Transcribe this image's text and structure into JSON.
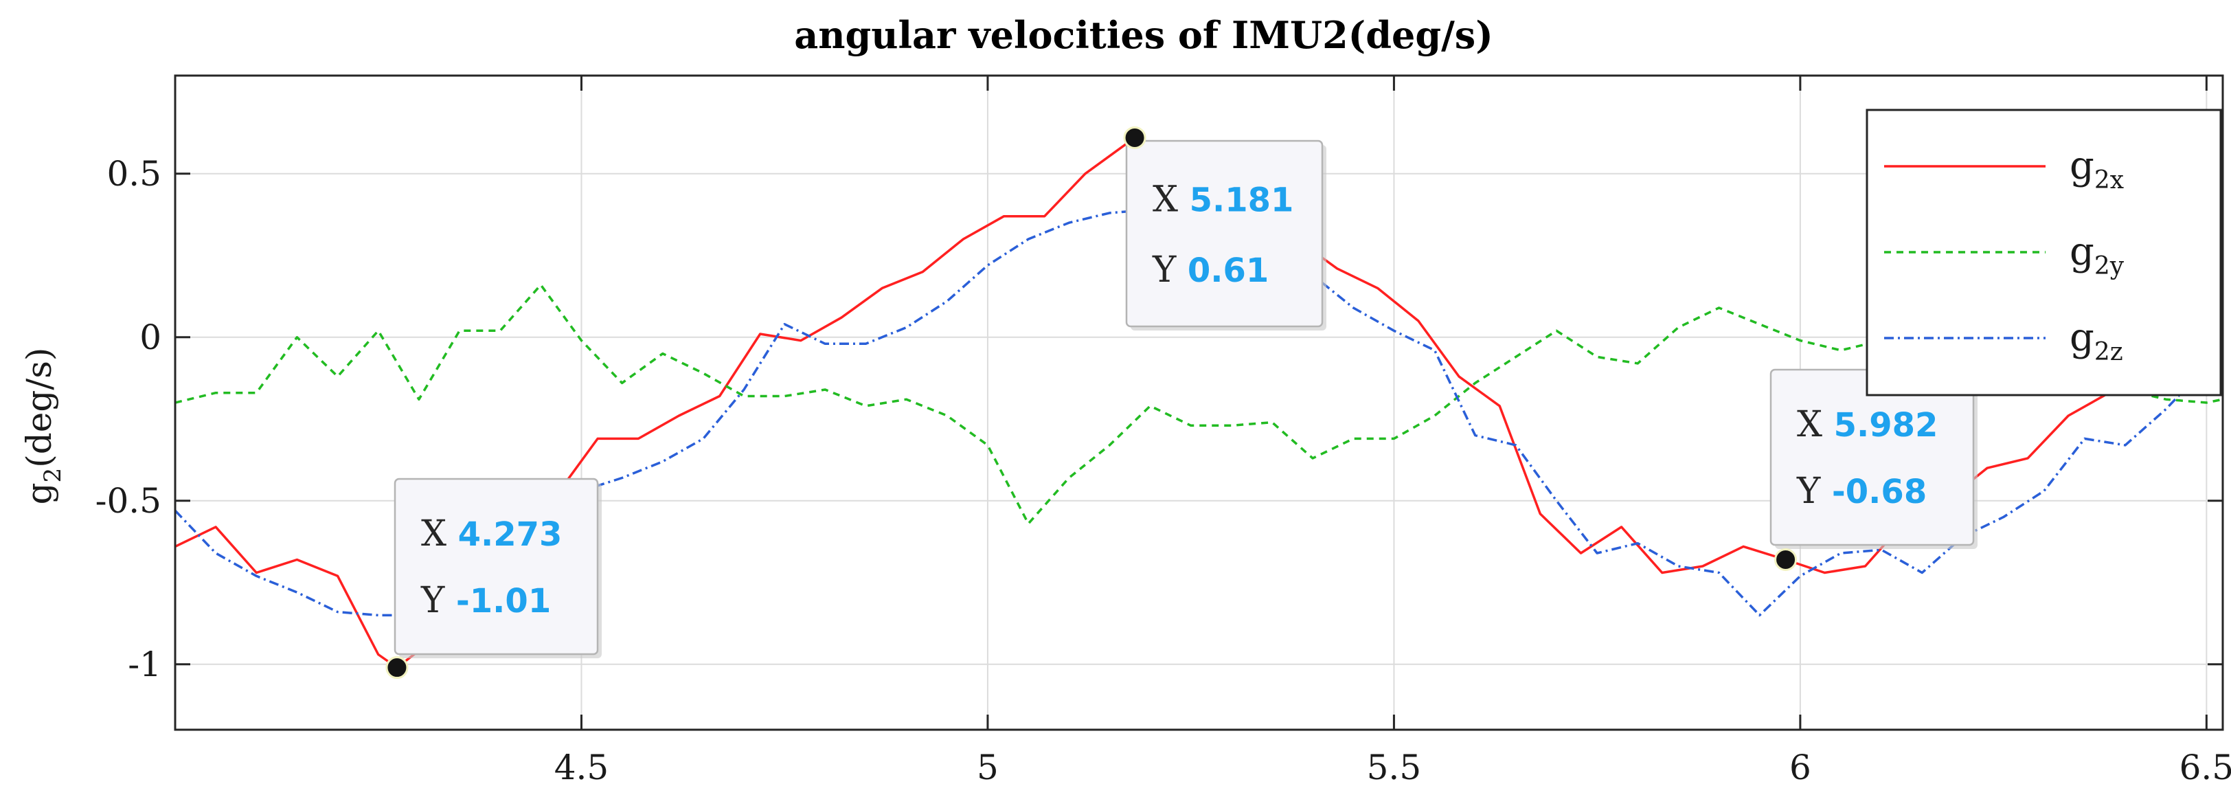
{
  "chart_data": {
    "type": "line",
    "title": "angular velocities of IMU2(deg/s)",
    "ylabel": {
      "main": "g",
      "sub": "2",
      "unit": "(deg/s)"
    },
    "xlabel": "",
    "xlim": [
      4.0,
      6.52
    ],
    "ylim": [
      -1.2,
      0.8
    ],
    "x_ticks": [
      {
        "value": 4.5,
        "label": "4.5"
      },
      {
        "value": 5,
        "label": "5"
      },
      {
        "value": 5.5,
        "label": "5.5"
      },
      {
        "value": 6,
        "label": "6"
      },
      {
        "value": 6.5,
        "label": "6.5"
      }
    ],
    "y_ticks": [
      {
        "value": 0.5,
        "label": "0.5"
      },
      {
        "value": 0,
        "label": "0"
      },
      {
        "value": -0.5,
        "label": "-0.5"
      },
      {
        "value": -1,
        "label": "-1"
      }
    ],
    "grid": true,
    "legend_position": "top-right",
    "series": [
      {
        "name": "g2x",
        "legend_main": "g",
        "legend_sub": "2x",
        "color": "#ff2020",
        "dash": "none",
        "x": [
          4.0,
          4.05,
          4.1,
          4.15,
          4.2,
          4.25,
          4.273,
          4.32,
          4.37,
          4.42,
          4.47,
          4.52,
          4.57,
          4.62,
          4.67,
          4.72,
          4.77,
          4.82,
          4.87,
          4.92,
          4.97,
          5.02,
          5.07,
          5.12,
          5.181,
          5.23,
          5.28,
          5.33,
          5.38,
          5.43,
          5.48,
          5.53,
          5.58,
          5.63,
          5.68,
          5.73,
          5.78,
          5.83,
          5.88,
          5.93,
          5.982,
          6.03,
          6.08,
          6.13,
          6.18,
          6.23,
          6.28,
          6.33,
          6.38,
          6.43,
          6.48,
          6.52
        ],
        "y": [
          -0.64,
          -0.58,
          -0.72,
          -0.68,
          -0.73,
          -0.97,
          -1.01,
          -0.92,
          -0.75,
          -0.62,
          -0.48,
          -0.31,
          -0.31,
          -0.24,
          -0.18,
          0.01,
          -0.01,
          0.06,
          0.15,
          0.2,
          0.3,
          0.37,
          0.37,
          0.5,
          0.61,
          0.52,
          0.44,
          0.39,
          0.3,
          0.21,
          0.15,
          0.05,
          -0.12,
          -0.21,
          -0.54,
          -0.66,
          -0.58,
          -0.72,
          -0.7,
          -0.64,
          -0.68,
          -0.72,
          -0.7,
          -0.56,
          -0.5,
          -0.4,
          -0.37,
          -0.24,
          -0.17,
          -0.12,
          0.0,
          0.11
        ]
      },
      {
        "name": "g2y",
        "legend_main": "g",
        "legend_sub": "2y",
        "color": "#22bb22",
        "dash": "10 8",
        "x": [
          4.0,
          4.05,
          4.1,
          4.15,
          4.2,
          4.25,
          4.3,
          4.35,
          4.4,
          4.45,
          4.5,
          4.55,
          4.6,
          4.65,
          4.7,
          4.75,
          4.8,
          4.85,
          4.9,
          4.95,
          5.0,
          5.05,
          5.1,
          5.15,
          5.2,
          5.25,
          5.3,
          5.35,
          5.4,
          5.45,
          5.5,
          5.55,
          5.6,
          5.65,
          5.7,
          5.75,
          5.8,
          5.85,
          5.9,
          5.95,
          6.0,
          6.05,
          6.1,
          6.15,
          6.2,
          6.25,
          6.3,
          6.35,
          6.4,
          6.45,
          6.5,
          6.52
        ],
        "y": [
          -0.2,
          -0.17,
          -0.17,
          0.0,
          -0.12,
          0.02,
          -0.19,
          0.02,
          0.02,
          0.16,
          -0.01,
          -0.14,
          -0.05,
          -0.11,
          -0.18,
          -0.18,
          -0.16,
          -0.21,
          -0.19,
          -0.24,
          -0.33,
          -0.57,
          -0.43,
          -0.33,
          -0.21,
          -0.27,
          -0.27,
          -0.26,
          -0.37,
          -0.31,
          -0.31,
          -0.24,
          -0.14,
          -0.06,
          0.02,
          -0.06,
          -0.08,
          0.03,
          0.09,
          0.04,
          -0.01,
          -0.04,
          -0.01,
          0.02,
          -0.04,
          -0.08,
          -0.12,
          -0.12,
          -0.16,
          -0.19,
          -0.2,
          -0.19
        ]
      },
      {
        "name": "g2z",
        "legend_main": "g",
        "legend_sub": "2z",
        "color": "#2a5fd8",
        "dash": "14 6 3 6",
        "x": [
          4.0,
          4.05,
          4.1,
          4.15,
          4.2,
          4.25,
          4.3,
          4.35,
          4.4,
          4.45,
          4.5,
          4.55,
          4.6,
          4.65,
          4.7,
          4.75,
          4.8,
          4.85,
          4.9,
          4.95,
          5.0,
          5.05,
          5.1,
          5.15,
          5.2,
          5.25,
          5.3,
          5.35,
          5.4,
          5.45,
          5.5,
          5.55,
          5.6,
          5.65,
          5.7,
          5.75,
          5.8,
          5.85,
          5.9,
          5.95,
          6.0,
          6.05,
          6.1,
          6.15,
          6.2,
          6.25,
          6.3,
          6.35,
          6.4,
          6.45,
          6.5,
          6.52
        ],
        "y": [
          -0.53,
          -0.66,
          -0.73,
          -0.78,
          -0.84,
          -0.85,
          -0.85,
          -0.7,
          -0.6,
          -0.52,
          -0.47,
          -0.43,
          -0.38,
          -0.31,
          -0.16,
          0.04,
          -0.02,
          -0.02,
          0.03,
          0.11,
          0.22,
          0.3,
          0.35,
          0.38,
          0.39,
          0.37,
          0.33,
          0.29,
          0.19,
          0.09,
          0.02,
          -0.04,
          -0.3,
          -0.33,
          -0.5,
          -0.66,
          -0.63,
          -0.7,
          -0.72,
          -0.85,
          -0.73,
          -0.66,
          -0.65,
          -0.72,
          -0.61,
          -0.55,
          -0.47,
          -0.31,
          -0.33,
          -0.22,
          -0.09,
          -0.05
        ]
      }
    ],
    "datatips": [
      {
        "x_label": "X",
        "x_value": "4.273",
        "y_label": "Y",
        "y_value": "-1.01",
        "px": 4.273,
        "py": -1.01
      },
      {
        "x_label": "X",
        "x_value": "5.181",
        "y_label": "Y",
        "y_value": "0.61",
        "px": 5.181,
        "py": 0.61
      },
      {
        "x_label": "X",
        "x_value": "5.982",
        "y_label": "Y",
        "y_value": "-0.68",
        "px": 5.982,
        "py": -0.68
      }
    ]
  }
}
